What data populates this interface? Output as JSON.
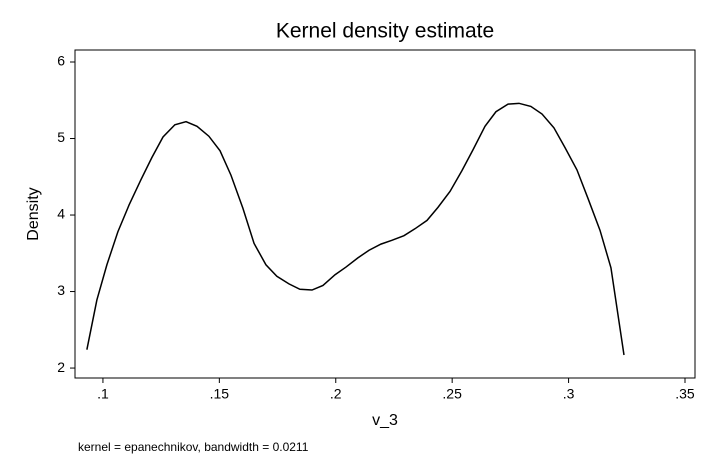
{
  "chart_data": {
    "type": "line",
    "title": "Kernel density estimate",
    "xlabel": "v_3",
    "ylabel": "Density",
    "note": "kernel = epanechnikov, bandwidth = 0.0211",
    "x": [
      0.0931,
      0.0974,
      0.1017,
      0.1064,
      0.1112,
      0.1163,
      0.121,
      0.1258,
      0.1309,
      0.1357,
      0.1404,
      0.1455,
      0.1503,
      0.155,
      0.1601,
      0.1649,
      0.17,
      0.1747,
      0.1799,
      0.1846,
      0.1898,
      0.1945,
      0.1997,
      0.2044,
      0.2095,
      0.2143,
      0.2194,
      0.2241,
      0.2293,
      0.234,
      0.2392,
      0.2439,
      0.2491,
      0.2542,
      0.2589,
      0.2641,
      0.2688,
      0.274,
      0.2787,
      0.2838,
      0.2886,
      0.2937,
      0.2985,
      0.3036,
      0.3083,
      0.3135,
      0.3182,
      0.3238
    ],
    "series": [
      {
        "name": "Density",
        "color": "#000000",
        "values": [
          2.24,
          2.89,
          3.35,
          3.78,
          4.13,
          4.46,
          4.75,
          5.02,
          5.18,
          5.22,
          5.16,
          5.03,
          4.84,
          4.52,
          4.09,
          3.63,
          3.35,
          3.2,
          3.1,
          3.03,
          3.02,
          3.08,
          3.22,
          3.32,
          3.44,
          3.54,
          3.62,
          3.67,
          3.73,
          3.82,
          3.93,
          4.1,
          4.31,
          4.58,
          4.85,
          5.16,
          5.35,
          5.45,
          5.46,
          5.42,
          5.32,
          5.14,
          4.88,
          4.59,
          4.22,
          3.8,
          3.31,
          2.17
        ]
      }
    ],
    "xlim": [
      0.088,
      0.3543
    ],
    "ylim": [
      1.87,
      6.157
    ],
    "xticks": [
      {
        "value": 0.1,
        "label": ".1"
      },
      {
        "value": 0.15,
        "label": ".15"
      },
      {
        "value": 0.2,
        "label": ".2"
      },
      {
        "value": 0.25,
        "label": ".25"
      },
      {
        "value": 0.3,
        "label": ".3"
      },
      {
        "value": 0.35,
        "label": ".35"
      }
    ],
    "yticks": [
      2,
      3,
      4,
      5,
      6
    ]
  }
}
